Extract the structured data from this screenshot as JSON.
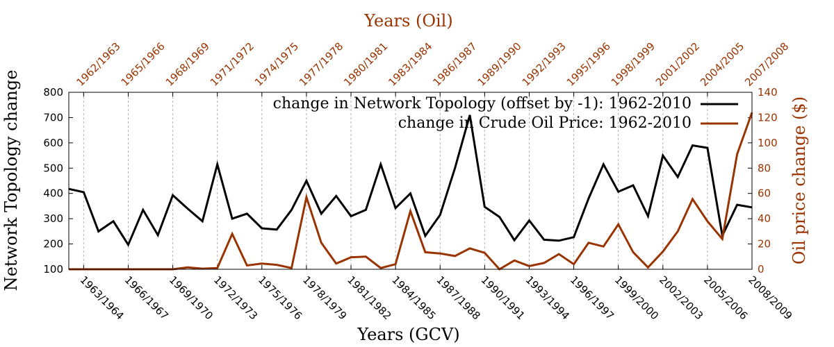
{
  "chart_data": {
    "type": "line",
    "title": "",
    "xlabel_bottom": "Years (GCV)",
    "xlabel_top": "Years (Oil)",
    "ylabel_left": "Network Topology change",
    "ylabel_right": "Oil price change ($)",
    "ylim_left": [
      100,
      800
    ],
    "ylim_right": [
      0,
      140
    ],
    "yticks_left": [
      "100",
      "200",
      "300",
      "400",
      "500",
      "600",
      "700",
      "800"
    ],
    "yticks_right": [
      "0",
      "20",
      "40",
      "60",
      "80",
      "100",
      "120",
      "140"
    ],
    "xticks_bottom": [
      "1963/1964",
      "1966/1967",
      "1969/1970",
      "1972/1973",
      "1975/1976",
      "1978/1979",
      "1981/1982",
      "1984/1985",
      "1987/1988",
      "1990/1991",
      "1993/1994",
      "1996/1997",
      "1999/2000",
      "2002/2003",
      "2005/2006",
      "2008/2009"
    ],
    "xticks_top": [
      "1962/1963",
      "1965/1966",
      "1968/1969",
      "1971/1972",
      "1974/1975",
      "1977/1978",
      "1980/1981",
      "1983/1984",
      "1986/1987",
      "1989/1990",
      "1992/1993",
      "1995/1996",
      "1998/1999",
      "2001/2002",
      "2004/2005",
      "2007/2008"
    ],
    "grid": "vertical dashed",
    "legend_position": "top-right",
    "series": [
      {
        "name": "change in Network Topology (offset by -1): 1962-2010",
        "axis": "left",
        "color": "#000000",
        "values": [
          418,
          405,
          250,
          290,
          197,
          335,
          235,
          393,
          340,
          290,
          515,
          300,
          320,
          262,
          257,
          335,
          450,
          320,
          390,
          310,
          335,
          515,
          342,
          400,
          232,
          315,
          500,
          710,
          347,
          307,
          215,
          293,
          217,
          213,
          227,
          380,
          515,
          407,
          432,
          310,
          550,
          465,
          590,
          580,
          233,
          355,
          345
        ]
      },
      {
        "name": "change in Crude Oil Price: 1962-2010",
        "axis": "right",
        "color": "#993300",
        "values": [
          0,
          0,
          0,
          0,
          0,
          0,
          0,
          0,
          1.5,
          0.5,
          1,
          28,
          3,
          4.5,
          3.5,
          1,
          57,
          21,
          4.5,
          9.5,
          10,
          1,
          4,
          46,
          13.5,
          12.5,
          10.5,
          16.5,
          13,
          0,
          7,
          2.5,
          5,
          12,
          4,
          21,
          18,
          35.5,
          13.5,
          1.5,
          14,
          30,
          55.5,
          38,
          24,
          91,
          124
        ]
      }
    ]
  }
}
